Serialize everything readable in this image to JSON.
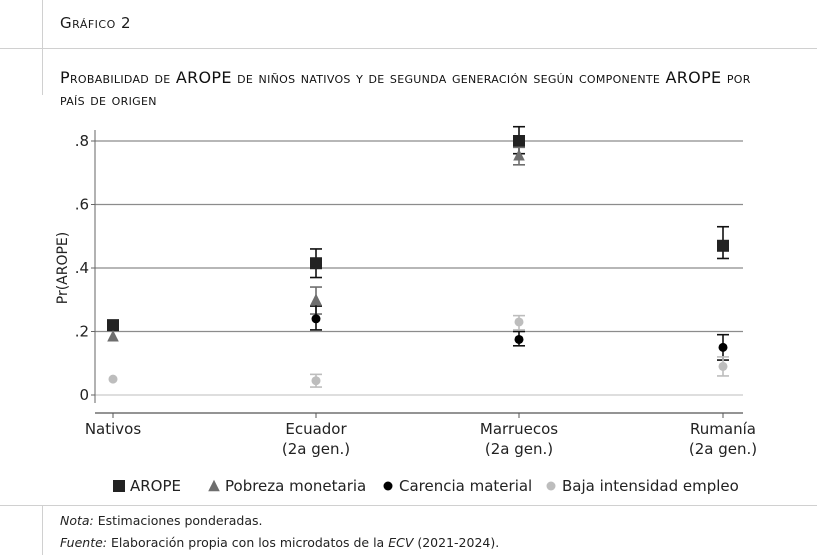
{
  "figure_label": "Gráfico 2",
  "title": "Probabilidad de AROPE de niños nativos y de segunda generación según componente AROPE por país de origen",
  "notes": {
    "nota_label": "Nota:",
    "nota_text": " Estimaciones ponderadas.",
    "fuente_label": "Fuente:",
    "fuente_text_1": " Elaboración propia con los microdatos de la ",
    "fuente_em": "ECV",
    "fuente_text_2": " (2021-2024)."
  },
  "chart_data": {
    "type": "scatter",
    "title": "",
    "xlabel": "",
    "ylabel": "Pr(AROPE)",
    "ylim": [
      0,
      0.85
    ],
    "yticks": [
      0,
      0.2,
      0.4,
      0.6,
      0.8
    ],
    "ytick_labels": [
      "0",
      ".2",
      ".4",
      ".6",
      ".8"
    ],
    "grid": true,
    "legend_position": "bottom",
    "categories": [
      [
        "Nativos"
      ],
      [
        "Ecuador",
        "(2a gen.)"
      ],
      [
        "Marruecos",
        "(2a gen.)"
      ],
      [
        "Rumanía",
        "(2a gen.)"
      ]
    ],
    "series": [
      {
        "name": "AROPE",
        "marker": "square",
        "color": "#222222",
        "values": [
          0.22,
          0.415,
          0.8,
          0.47
        ],
        "ci_low": [
          null,
          0.37,
          0.76,
          0.43
        ],
        "ci_high": [
          null,
          0.46,
          0.845,
          0.53
        ]
      },
      {
        "name": "Pobreza monetaria",
        "marker": "triangle",
        "color": "#6e6e6e",
        "values": [
          0.185,
          0.3,
          0.755,
          null
        ],
        "ci_low": [
          null,
          0.255,
          0.725,
          null
        ],
        "ci_high": [
          null,
          0.34,
          0.78,
          null
        ]
      },
      {
        "name": "Carencia material",
        "marker": "circle",
        "color": "#000000",
        "values": [
          null,
          0.24,
          0.175,
          0.15
        ],
        "ci_low": [
          null,
          0.205,
          0.155,
          0.11
        ],
        "ci_high": [
          null,
          0.28,
          0.2,
          0.19
        ]
      },
      {
        "name": "Baja intensidad empleo",
        "marker": "circle",
        "color": "#bdbdbd",
        "values": [
          0.05,
          0.045,
          0.23,
          0.09
        ],
        "ci_low": [
          null,
          0.025,
          0.205,
          0.06
        ],
        "ci_high": [
          null,
          0.065,
          0.25,
          0.12
        ]
      }
    ]
  }
}
